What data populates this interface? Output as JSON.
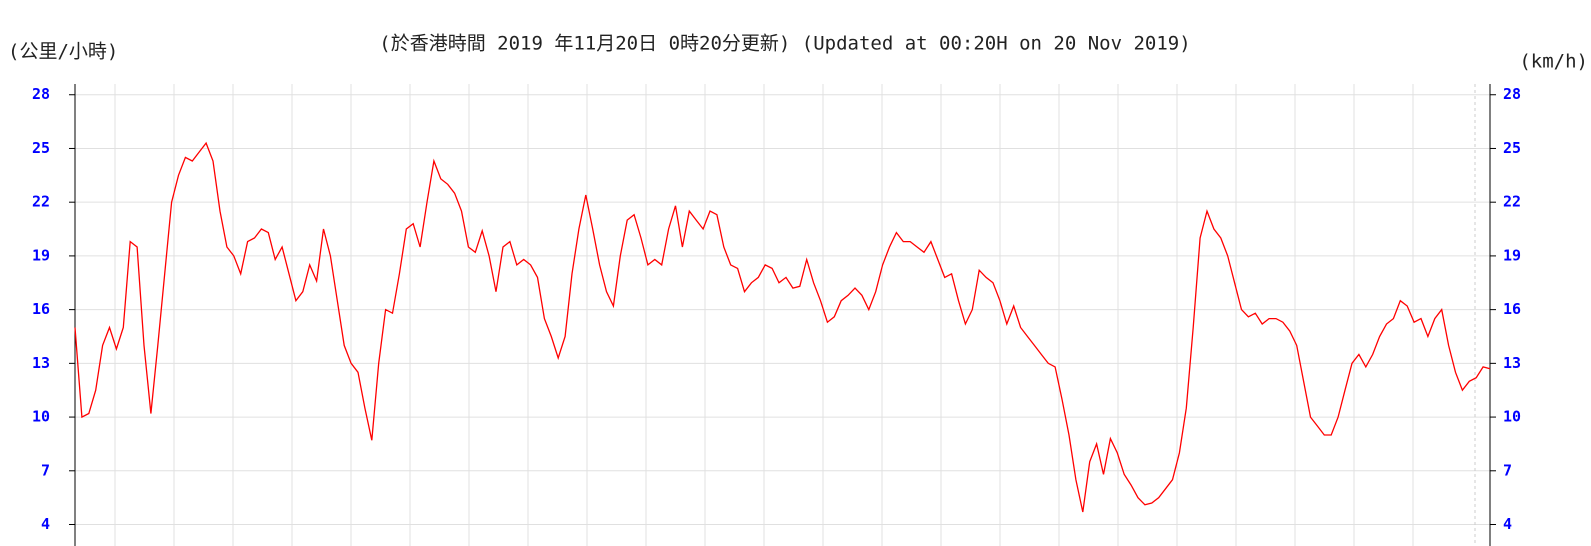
{
  "chart_data": {
    "type": "line",
    "title": "(於香港時間 2019 年11月20日 0時20分更新) (Updated at 00:20H on 20 Nov 2019)",
    "y_label": "(公里/小時)",
    "y2_label": "(km/h)",
    "ylim": [
      2.8,
      28.6
    ],
    "yticks": [
      4,
      7,
      10,
      13,
      16,
      19,
      22,
      25,
      28
    ],
    "grid": true,
    "color": "#ff0000",
    "values": [
      15,
      10,
      10.2,
      11.5,
      14,
      15,
      13.8,
      15,
      19.8,
      19.5,
      14,
      10.2,
      14,
      18,
      22,
      23.5,
      24.5,
      24.3,
      24.8,
      25.3,
      24.3,
      21.5,
      19.5,
      19,
      18,
      19.8,
      20,
      20.5,
      20.3,
      18.8,
      19.5,
      18,
      16.5,
      17,
      18.5,
      17.6,
      20.5,
      19,
      16.5,
      14,
      13,
      12.5,
      10.5,
      8.7,
      13,
      16,
      15.8,
      18,
      20.5,
      20.8,
      19.5,
      22,
      24.3,
      23.3,
      23,
      22.5,
      21.5,
      19.5,
      19.2,
      20.4,
      19,
      17,
      19.5,
      19.8,
      18.5,
      18.8,
      18.5,
      17.8,
      15.5,
      14.5,
      13.3,
      14.5,
      18,
      20.5,
      22.4,
      20.5,
      18.5,
      17,
      16.2,
      19,
      21,
      21.3,
      20,
      18.5,
      18.8,
      18.5,
      20.5,
      21.8,
      19.5,
      21.5,
      21,
      20.5,
      21.5,
      21.3,
      19.5,
      18.5,
      18.3,
      17,
      17.5,
      17.8,
      18.5,
      18.3,
      17.5,
      17.8,
      17.2,
      17.3,
      18.8,
      17.5,
      16.5,
      15.3,
      15.6,
      16.5,
      16.8,
      17.2,
      16.8,
      16,
      17,
      18.5,
      19.5,
      20.3,
      19.8,
      19.8,
      19.5,
      19.2,
      19.8,
      18.8,
      17.8,
      18,
      16.5,
      15.2,
      16,
      18.2,
      17.8,
      17.5,
      16.5,
      15.2,
      16.2,
      15,
      14.5,
      14,
      13.5,
      13,
      12.8,
      11,
      9,
      6.5,
      4.7,
      7.5,
      8.5,
      6.8,
      8.8,
      8,
      6.8,
      6.2,
      5.5,
      5.1,
      5.2,
      5.5,
      6,
      6.5,
      8,
      10.5,
      15,
      20,
      21.5,
      20.5,
      20,
      19,
      17.5,
      16,
      15.6,
      15.8,
      15.2,
      15.5,
      15.5,
      15.3,
      14.8,
      14,
      12,
      10,
      9.5,
      9,
      9,
      10,
      11.5,
      13,
      13.5,
      12.8,
      13.5,
      14.5,
      15.2,
      15.5,
      16.5,
      16.2,
      15.3,
      15.5,
      14.5,
      15.5,
      16,
      14,
      12.5,
      11.5,
      12,
      12.2,
      12.8,
      12.7
    ]
  }
}
